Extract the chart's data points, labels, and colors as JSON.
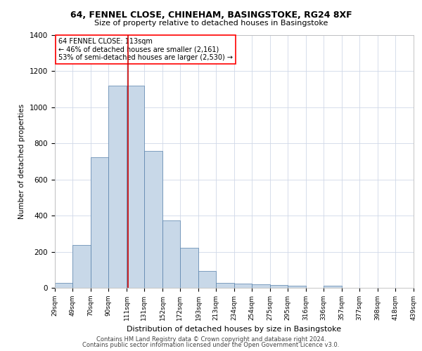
{
  "title1": "64, FENNEL CLOSE, CHINEHAM, BASINGSTOKE, RG24 8XF",
  "title2": "Size of property relative to detached houses in Basingstoke",
  "xlabel": "Distribution of detached houses by size in Basingstoke",
  "ylabel": "Number of detached properties",
  "footer1": "Contains HM Land Registry data © Crown copyright and database right 2024.",
  "footer2": "Contains public sector information licensed under the Open Government Licence v3.0.",
  "bar_color": "#c8d8e8",
  "bar_edge_color": "#5580aa",
  "grid_color": "#d0d8e8",
  "annotation_line1": "64 FENNEL CLOSE: 113sqm",
  "annotation_line2": "← 46% of detached houses are smaller (2,161)",
  "annotation_line3": "53% of semi-detached houses are larger (2,530) →",
  "vline_color": "#cc0000",
  "vline_x": 113,
  "bin_edges": [
    29,
    49,
    70,
    90,
    111,
    131,
    152,
    172,
    193,
    213,
    234,
    254,
    275,
    295,
    316,
    336,
    357,
    377,
    398,
    418,
    439
  ],
  "bar_heights": [
    29,
    237,
    724,
    1120,
    1120,
    760,
    375,
    220,
    95,
    29,
    23,
    20,
    17,
    10,
    0,
    10,
    0,
    0,
    0,
    0
  ],
  "ylim": [
    0,
    1400
  ],
  "yticks": [
    0,
    200,
    400,
    600,
    800,
    1000,
    1200,
    1400
  ],
  "tick_labels": [
    "29sqm",
    "49sqm",
    "70sqm",
    "90sqm",
    "111sqm",
    "131sqm",
    "152sqm",
    "172sqm",
    "193sqm",
    "213sqm",
    "234sqm",
    "254sqm",
    "275sqm",
    "295sqm",
    "316sqm",
    "336sqm",
    "357sqm",
    "377sqm",
    "398sqm",
    "418sqm",
    "439sqm"
  ]
}
